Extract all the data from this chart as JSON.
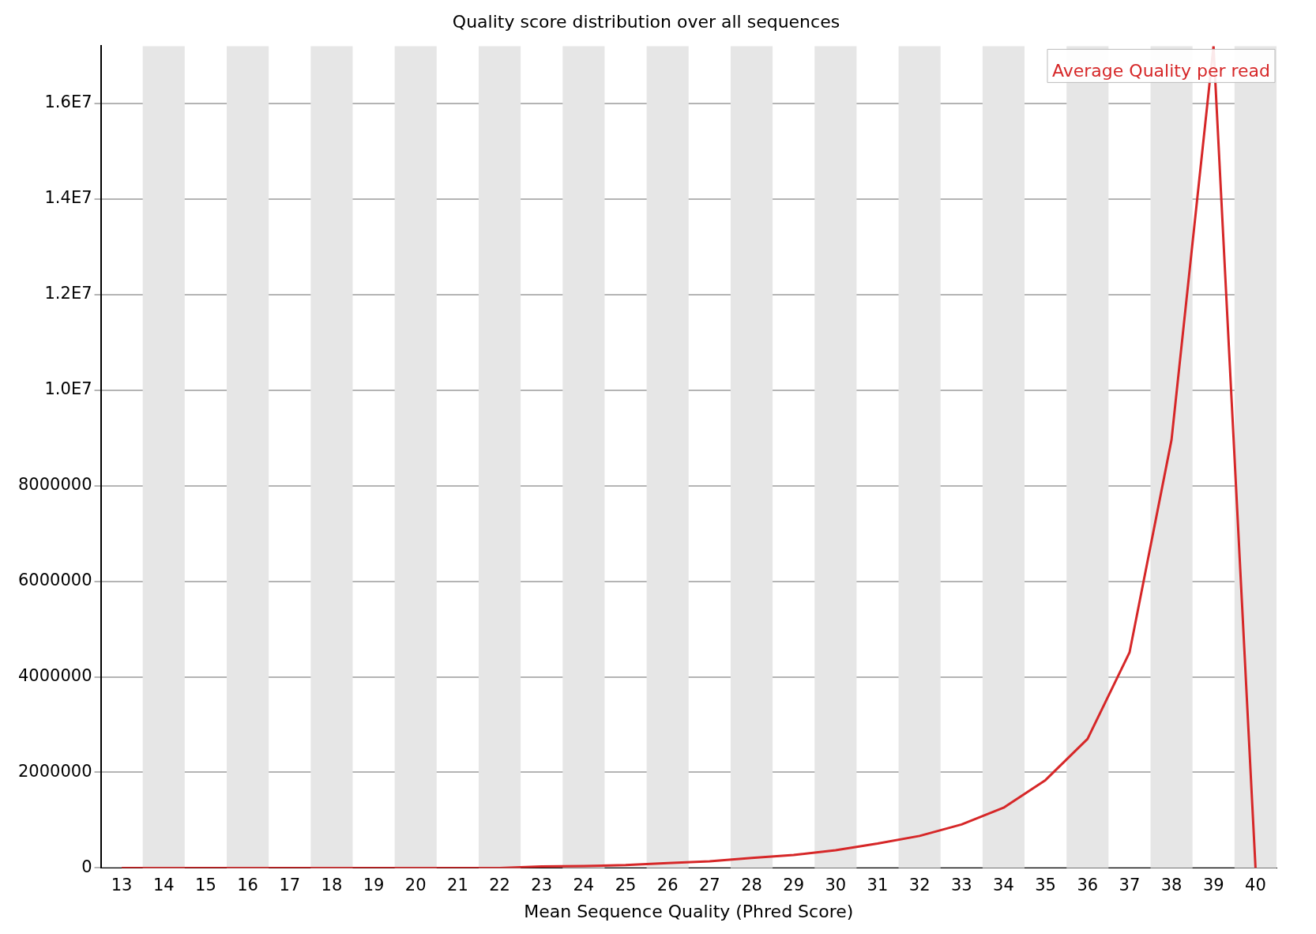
{
  "chart_data": {
    "type": "line",
    "title": "Quality score distribution over all sequences",
    "xlabel": "Mean Sequence Quality (Phred Score)",
    "categories": [
      "13",
      "14",
      "15",
      "16",
      "17",
      "18",
      "19",
      "20",
      "21",
      "22",
      "23",
      "24",
      "25",
      "26",
      "27",
      "28",
      "29",
      "30",
      "31",
      "32",
      "33",
      "34",
      "35",
      "36",
      "37",
      "38",
      "39",
      "40"
    ],
    "series": [
      {
        "name": "Average Quality per read",
        "color": "#d62728",
        "values": [
          0,
          0,
          0,
          0,
          0,
          0,
          0,
          0,
          0,
          0,
          30000,
          40000,
          60000,
          100000,
          140000,
          210000,
          270000,
          370000,
          510000,
          670000,
          910000,
          1260000,
          1840000,
          2700000,
          4510000,
          8960000,
          17200000,
          0
        ]
      }
    ],
    "ylim": [
      0,
      17200000
    ],
    "yticks": [
      0,
      2000000,
      4000000,
      6000000,
      8000000,
      {
        "value": 10000000,
        "label": "1.0E7"
      },
      {
        "value": 12000000,
        "label": "1.2E7"
      },
      {
        "value": 14000000,
        "label": "1.4E7"
      },
      {
        "value": 16000000,
        "label": "1.6E7"
      }
    ],
    "grid": "y",
    "legend": "top right",
    "marker": "none",
    "line_style": "solid"
  }
}
